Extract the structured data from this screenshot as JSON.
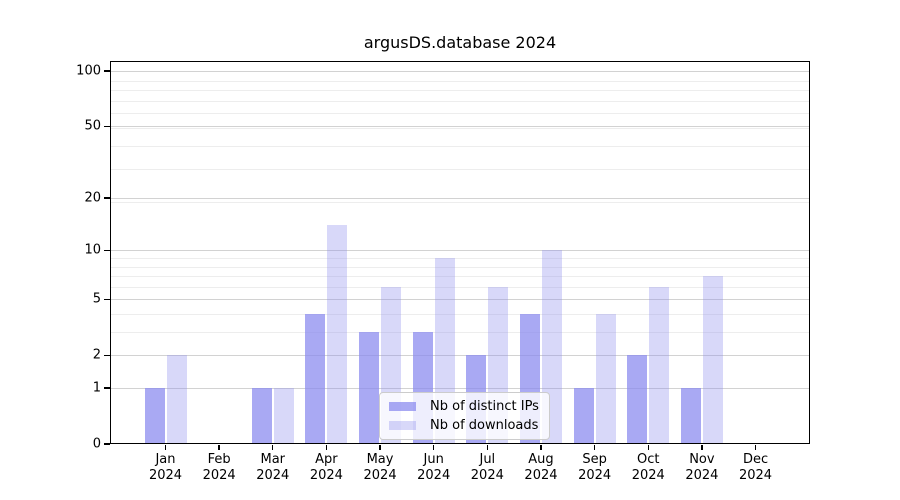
{
  "title": "argusDS.database 2024",
  "chart_data": {
    "type": "bar",
    "title": "argusDS.database 2024",
    "categories": [
      "Jan 2024",
      "Feb 2024",
      "Mar 2024",
      "Apr 2024",
      "May 2024",
      "Jun 2024",
      "Jul 2024",
      "Aug 2024",
      "Sep 2024",
      "Oct 2024",
      "Nov 2024",
      "Dec 2024"
    ],
    "series": [
      {
        "name": "Nb of distinct IPs",
        "values": [
          1,
          0,
          1,
          4,
          3,
          3,
          2,
          4,
          1,
          2,
          1,
          0
        ],
        "color": "#8888ee",
        "alpha": 0.72
      },
      {
        "name": "Nb of downloads",
        "values": [
          2,
          0,
          1,
          14,
          6,
          9,
          6,
          10,
          4,
          6,
          7,
          0
        ],
        "color": "#8888ee",
        "alpha": 0.33
      }
    ],
    "xlabel": "",
    "ylabel": "",
    "yscale": "log(1+x)",
    "ylim": [
      0,
      113
    ],
    "yticks": [
      0,
      1,
      2,
      5,
      10,
      20,
      50,
      100
    ],
    "minor_yticks": [
      3,
      4,
      6,
      7,
      8,
      9,
      19,
      29,
      39,
      49,
      59,
      69,
      79,
      89
    ],
    "grid": true,
    "legend_position": "lower center inside"
  },
  "colors": {
    "bar_ips_effective": "#a9a9f2",
    "bar_downloads_effective": "#d9d9f9",
    "grid_major": "#d2d2d2",
    "grid_minor": "#ededed",
    "spine": "#000000",
    "background": "#ffffff"
  }
}
